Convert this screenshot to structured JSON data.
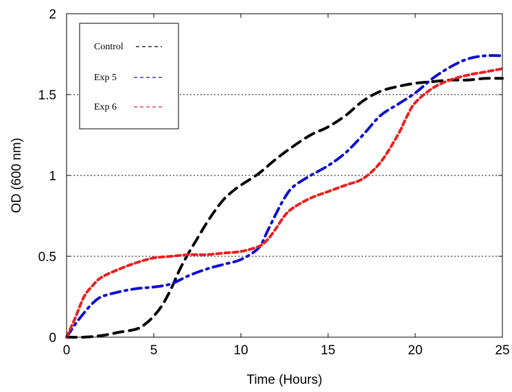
{
  "chart_data": {
    "type": "line",
    "title": "",
    "xlabel": "Time (Hours)",
    "ylabel": "OD (600 nm)",
    "xlim": [
      0,
      25
    ],
    "ylim": [
      0,
      2
    ],
    "x_ticks": [
      0,
      5,
      10,
      15,
      20,
      25
    ],
    "y_ticks": [
      0,
      0.5,
      1,
      1.5,
      2
    ],
    "x_tick_labels": [
      "0",
      "5",
      "10",
      "15",
      "20",
      "25"
    ],
    "y_tick_labels": [
      "0",
      "0.5",
      "1",
      "1.5",
      "2"
    ],
    "grid": "horizontal dotted",
    "legend_position": "top-left",
    "series": [
      {
        "name": "Control",
        "color": "#000000",
        "style": "dashed",
        "x": [
          0,
          1,
          2,
          3,
          4,
          4.5,
          5,
          5.5,
          6,
          6.5,
          7,
          7.5,
          8,
          8.5,
          9,
          9.5,
          10,
          11,
          12,
          13,
          14,
          15,
          16,
          17,
          18,
          19,
          20,
          21,
          22,
          23,
          24,
          25
        ],
        "y": [
          0,
          0,
          0.01,
          0.03,
          0.05,
          0.08,
          0.13,
          0.2,
          0.3,
          0.42,
          0.52,
          0.61,
          0.7,
          0.78,
          0.85,
          0.9,
          0.94,
          1.01,
          1.1,
          1.18,
          1.25,
          1.3,
          1.37,
          1.46,
          1.52,
          1.55,
          1.57,
          1.58,
          1.59,
          1.59,
          1.6,
          1.6
        ]
      },
      {
        "name": "Exp 5",
        "color": "#1010cc",
        "style": "dashed",
        "x": [
          0,
          0.5,
          1,
          1.5,
          2,
          3,
          4,
          5,
          6,
          7,
          8,
          9,
          10,
          11,
          11.5,
          12,
          12.5,
          13,
          14,
          15,
          16,
          17,
          18,
          19,
          20,
          21,
          22,
          23,
          24,
          25
        ],
        "y": [
          0,
          0.08,
          0.15,
          0.21,
          0.25,
          0.28,
          0.3,
          0.31,
          0.33,
          0.38,
          0.42,
          0.45,
          0.48,
          0.55,
          0.65,
          0.76,
          0.86,
          0.93,
          1.0,
          1.06,
          1.14,
          1.25,
          1.37,
          1.44,
          1.51,
          1.6,
          1.67,
          1.72,
          1.74,
          1.74
        ]
      },
      {
        "name": "Exp 6",
        "color": "#e82020",
        "style": "dashed",
        "x": [
          0,
          0.5,
          1,
          1.5,
          2,
          3,
          4,
          5,
          6,
          7,
          8,
          9,
          10,
          11,
          11.5,
          12,
          12.5,
          13,
          14,
          15,
          16,
          17,
          18,
          19,
          19.5,
          20,
          21,
          22,
          23,
          24,
          25
        ],
        "y": [
          0,
          0.12,
          0.25,
          0.32,
          0.37,
          0.42,
          0.46,
          0.49,
          0.5,
          0.51,
          0.51,
          0.52,
          0.53,
          0.56,
          0.6,
          0.67,
          0.75,
          0.8,
          0.86,
          0.9,
          0.94,
          0.98,
          1.08,
          1.25,
          1.36,
          1.45,
          1.54,
          1.59,
          1.62,
          1.64,
          1.66
        ]
      }
    ]
  }
}
